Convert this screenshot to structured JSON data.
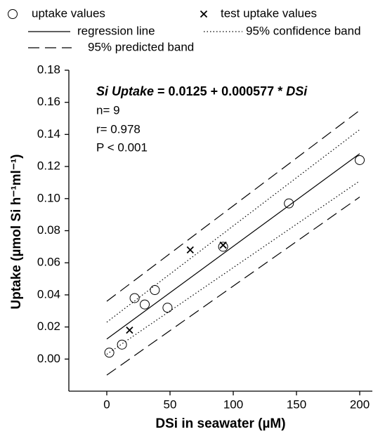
{
  "chart_data": {
    "type": "scatter",
    "xlabel": "DSi in seawater (µM)",
    "ylabel": "Uptake (µmol Si  h⁻¹ml⁻¹)",
    "xlim": [
      -30,
      210
    ],
    "ylim": [
      -0.02,
      0.18
    ],
    "xticks": [
      0,
      50,
      100,
      150,
      200
    ],
    "yticks": [
      {
        "value": 0,
        "label": "0.00"
      },
      0.02,
      0.04,
      0.06,
      0.08,
      {
        "value": 0.1,
        "label": "0.10"
      },
      0.12,
      0.14,
      0.16,
      0.18
    ],
    "equation": [
      "Si Uptake",
      " = 0.0125 + 0.000577 * ",
      "DSi"
    ],
    "stats": [
      "n= 9",
      "r= 0.978",
      "P < 0.001"
    ],
    "series": [
      {
        "name": "uptake values",
        "marker": "circle",
        "color": "#000000",
        "x": [
          2,
          12,
          22,
          30,
          38,
          48,
          92,
          144,
          200
        ],
        "values": [
          0.004,
          0.009,
          0.038,
          0.034,
          0.043,
          0.032,
          0.07,
          0.097,
          0.124
        ]
      },
      {
        "name": "test uptake values",
        "marker": "cross",
        "color": "#000000",
        "x": [
          18,
          66,
          92
        ],
        "values": [
          0.018,
          0.068,
          0.071
        ]
      },
      {
        "name": "regression line",
        "line_style": "solid",
        "color": "#000000",
        "x": [
          0,
          200
        ],
        "values": [
          0.0125,
          0.128
        ]
      },
      {
        "name": "95% confidence band",
        "line_style": "dotted",
        "color": "#000000",
        "x": [
          0,
          200
        ],
        "upper": [
          0.023,
          0.143
        ],
        "lower": [
          0.003,
          0.111
        ]
      },
      {
        "name": "95% predicted band",
        "line_style": "dashed",
        "color": "#000000",
        "x": [
          0,
          200
        ],
        "upper": [
          0.036,
          0.155
        ],
        "lower": [
          -0.01,
          0.101
        ]
      }
    ]
  }
}
